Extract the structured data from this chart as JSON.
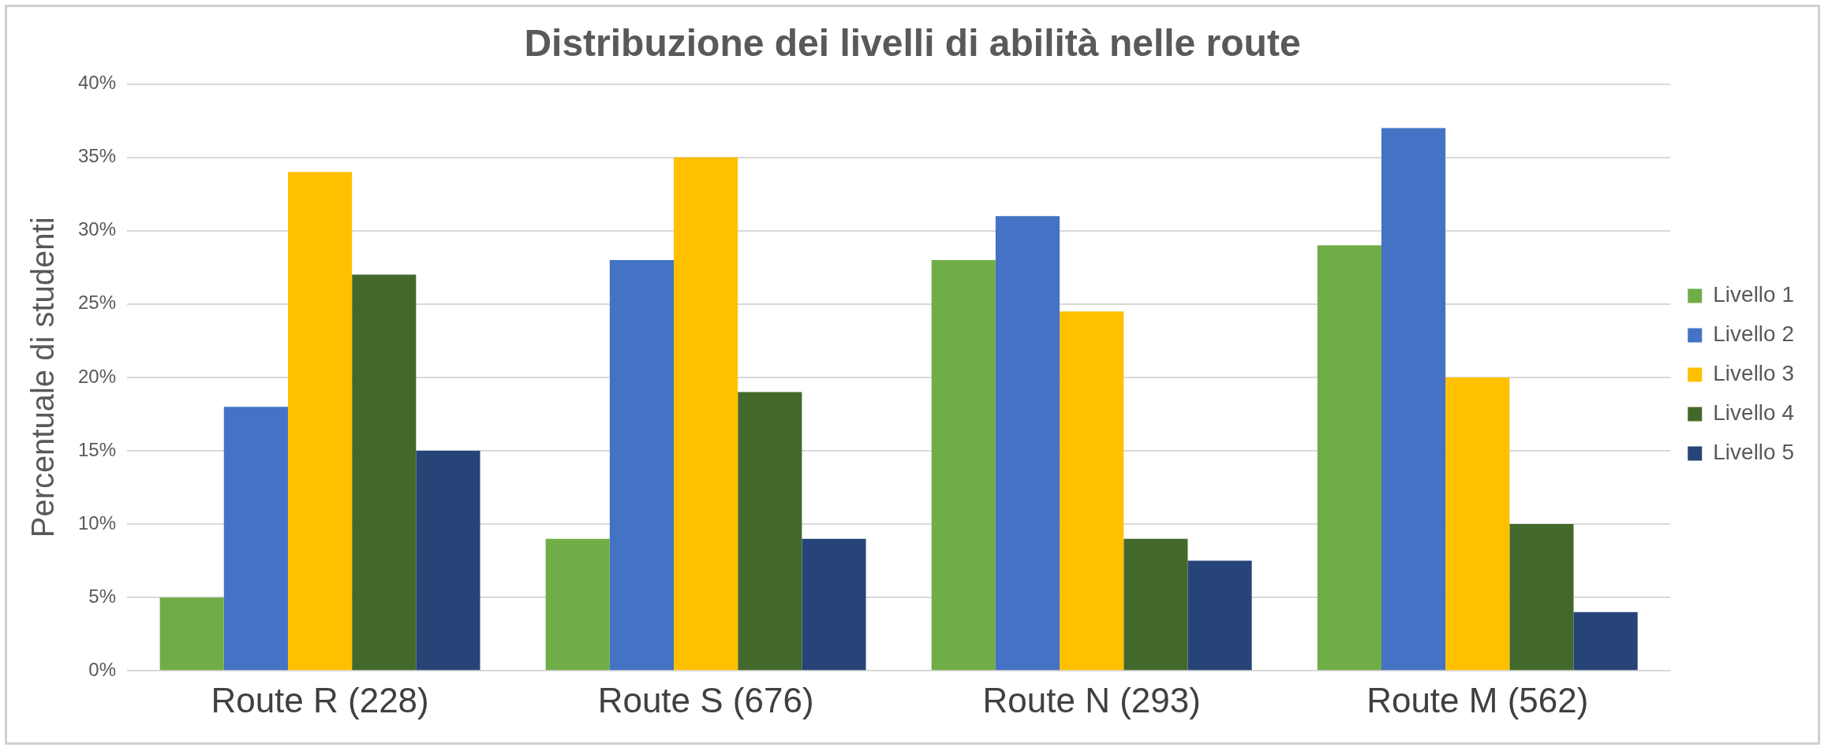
{
  "chart_data": {
    "type": "bar",
    "title": "Distribuzione dei livelli di abilità nelle route",
    "ylabel": "Percentuale di studenti",
    "categories": [
      "Route R (228)",
      "Route S (676)",
      "Route N (293)",
      "Route M (562)"
    ],
    "series": [
      {
        "name": "Livello 1",
        "color": "#70ad47",
        "values": [
          5,
          9,
          28,
          29
        ]
      },
      {
        "name": "Livello 2",
        "color": "#4472c4",
        "values": [
          18,
          28,
          31,
          37
        ]
      },
      {
        "name": "Livello 3",
        "color": "#ffc000",
        "values": [
          34,
          35,
          24.5,
          20
        ]
      },
      {
        "name": "Livello 4",
        "color": "#43682b",
        "values": [
          27,
          19,
          9,
          10
        ]
      },
      {
        "name": "Livello 5",
        "color": "#264478",
        "values": [
          15,
          9,
          7.5,
          4
        ]
      }
    ],
    "ylim": [
      0,
      40
    ],
    "yticks": [
      {
        "value": 0,
        "label": "0%"
      },
      {
        "value": 5,
        "label": "5%"
      },
      {
        "value": 10,
        "label": "10%"
      },
      {
        "value": 15,
        "label": "15%"
      },
      {
        "value": 20,
        "label": "20%"
      },
      {
        "value": 25,
        "label": "25%"
      },
      {
        "value": 30,
        "label": "30%"
      },
      {
        "value": 35,
        "label": "35%"
      },
      {
        "value": 40,
        "label": "40%"
      }
    ],
    "grid": "y",
    "legend": "right"
  }
}
